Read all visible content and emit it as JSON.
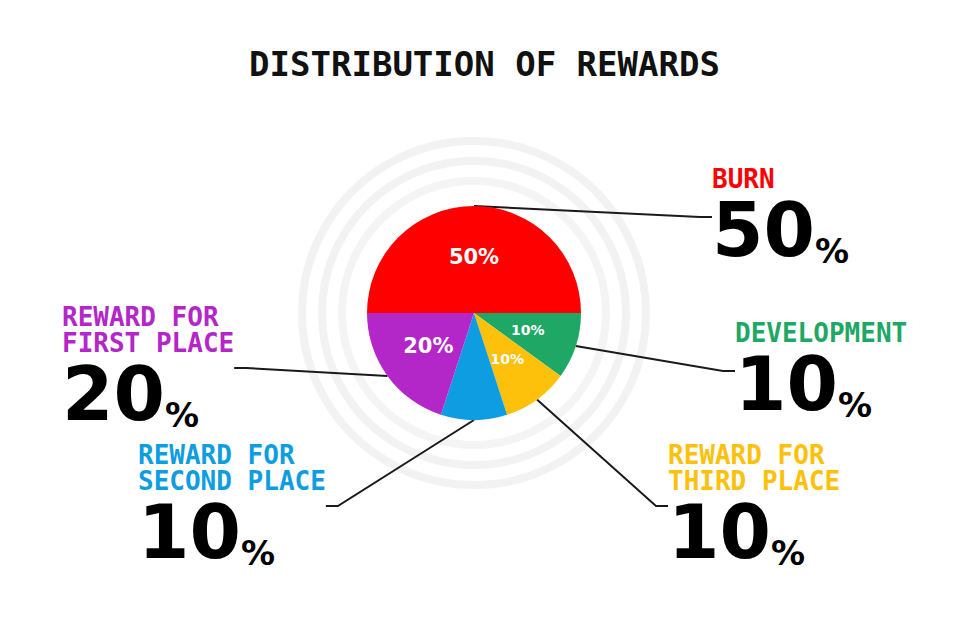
{
  "chart_data": {
    "type": "pie",
    "title": "DISTRIBUTION OF REWARDS",
    "categories": [
      "BURN",
      "DEVELOPMENT",
      "REWARD FOR THIRD PLACE",
      "REWARD FOR SECOND PLACE",
      "REWARD FOR FIRST PLACE"
    ],
    "values": [
      50,
      10,
      10,
      10,
      20
    ],
    "value_labels": [
      "50%",
      "10%",
      "10%",
      "10%",
      "20%"
    ],
    "colors": [
      "#ff0000",
      "#1fa865",
      "#fdc10b",
      "#0f9de2",
      "#b327c9"
    ],
    "data_labels": true
  }
}
